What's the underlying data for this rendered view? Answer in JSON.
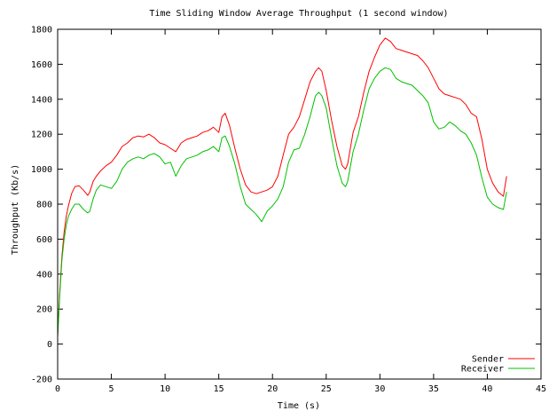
{
  "chart_data": {
    "type": "line",
    "title": "Time Sliding Window Average Throughput (1 second window)",
    "xlabel": "Time (s)",
    "ylabel": "Throughput (Kb/s)",
    "xlim": [
      0,
      45
    ],
    "ylim": [
      -200,
      1800
    ],
    "xticks": [
      0,
      5,
      10,
      15,
      20,
      25,
      30,
      35,
      40,
      45
    ],
    "yticks": [
      -200,
      0,
      200,
      400,
      600,
      800,
      1000,
      1200,
      1400,
      1600,
      1800
    ],
    "grid": false,
    "legend_position": "bottom-right",
    "series": [
      {
        "name": "Sender",
        "color": "#ff0000",
        "x": [
          0.0,
          0.2,
          0.4,
          0.6,
          0.8,
          1.0,
          1.3,
          1.6,
          2.0,
          2.4,
          2.8,
          3.0,
          3.3,
          3.6,
          4.0,
          4.5,
          5.0,
          5.5,
          6.0,
          6.5,
          7.0,
          7.5,
          8.0,
          8.5,
          9.0,
          9.5,
          10.0,
          10.5,
          11.0,
          11.5,
          12.0,
          12.5,
          13.0,
          13.5,
          14.0,
          14.5,
          15.0,
          15.3,
          15.6,
          16.0,
          16.5,
          17.0,
          17.5,
          18.0,
          18.5,
          19.0,
          19.5,
          20.0,
          20.5,
          21.0,
          21.5,
          22.0,
          22.5,
          23.0,
          23.5,
          24.0,
          24.3,
          24.6,
          25.0,
          25.5,
          26.0,
          26.5,
          26.8,
          27.0,
          27.5,
          28.0,
          28.5,
          29.0,
          29.5,
          30.0,
          30.5,
          31.0,
          31.5,
          32.0,
          32.5,
          33.0,
          33.5,
          34.0,
          34.5,
          35.0,
          35.5,
          36.0,
          36.5,
          37.0,
          37.5,
          38.0,
          38.5,
          39.0,
          39.5,
          40.0,
          40.5,
          41.0,
          41.5,
          41.8
        ],
        "y": [
          50,
          300,
          500,
          640,
          730,
          790,
          860,
          900,
          905,
          880,
          850,
          870,
          930,
          960,
          990,
          1020,
          1040,
          1080,
          1130,
          1150,
          1180,
          1190,
          1185,
          1200,
          1180,
          1150,
          1140,
          1120,
          1100,
          1150,
          1170,
          1180,
          1190,
          1210,
          1220,
          1240,
          1210,
          1300,
          1320,
          1250,
          1120,
          1000,
          910,
          870,
          860,
          870,
          880,
          900,
          960,
          1080,
          1200,
          1240,
          1300,
          1400,
          1500,
          1560,
          1580,
          1560,
          1450,
          1280,
          1130,
          1020,
          1000,
          1030,
          1210,
          1300,
          1440,
          1560,
          1640,
          1710,
          1750,
          1730,
          1690,
          1680,
          1670,
          1660,
          1650,
          1620,
          1580,
          1520,
          1460,
          1430,
          1420,
          1410,
          1400,
          1370,
          1320,
          1300,
          1170,
          1000,
          920,
          870,
          845,
          960
        ]
      },
      {
        "name": "Receiver",
        "color": "#00c000",
        "x": [
          0.0,
          0.2,
          0.4,
          0.6,
          0.8,
          1.0,
          1.3,
          1.6,
          2.0,
          2.4,
          2.8,
          3.0,
          3.3,
          3.6,
          4.0,
          4.5,
          5.0,
          5.5,
          6.0,
          6.5,
          7.0,
          7.5,
          8.0,
          8.5,
          9.0,
          9.5,
          10.0,
          10.5,
          11.0,
          11.5,
          12.0,
          12.5,
          13.0,
          13.5,
          14.0,
          14.5,
          15.0,
          15.3,
          15.6,
          16.0,
          16.5,
          17.0,
          17.5,
          18.0,
          18.5,
          19.0,
          19.5,
          20.0,
          20.5,
          21.0,
          21.5,
          22.0,
          22.5,
          23.0,
          23.5,
          24.0,
          24.3,
          24.6,
          25.0,
          25.5,
          26.0,
          26.5,
          26.8,
          27.0,
          27.5,
          28.0,
          28.5,
          29.0,
          29.5,
          30.0,
          30.5,
          31.0,
          31.5,
          32.0,
          32.5,
          33.0,
          33.5,
          34.0,
          34.5,
          35.0,
          35.5,
          36.0,
          36.5,
          37.0,
          37.5,
          38.0,
          38.5,
          39.0,
          39.5,
          40.0,
          40.5,
          41.0,
          41.5,
          41.8
        ],
        "y": [
          40,
          280,
          480,
          600,
          680,
          730,
          770,
          800,
          800,
          770,
          750,
          760,
          830,
          880,
          910,
          900,
          890,
          930,
          1000,
          1040,
          1060,
          1070,
          1060,
          1080,
          1090,
          1070,
          1030,
          1040,
          960,
          1020,
          1060,
          1070,
          1080,
          1100,
          1110,
          1130,
          1100,
          1180,
          1190,
          1130,
          1030,
          900,
          800,
          770,
          740,
          700,
          760,
          790,
          830,
          900,
          1040,
          1110,
          1120,
          1200,
          1300,
          1420,
          1440,
          1420,
          1350,
          1180,
          1020,
          920,
          900,
          930,
          1100,
          1200,
          1340,
          1460,
          1520,
          1560,
          1580,
          1570,
          1520,
          1500,
          1490,
          1480,
          1450,
          1420,
          1380,
          1270,
          1230,
          1240,
          1270,
          1250,
          1220,
          1200,
          1150,
          1080,
          950,
          840,
          800,
          780,
          770,
          870
        ]
      }
    ]
  }
}
